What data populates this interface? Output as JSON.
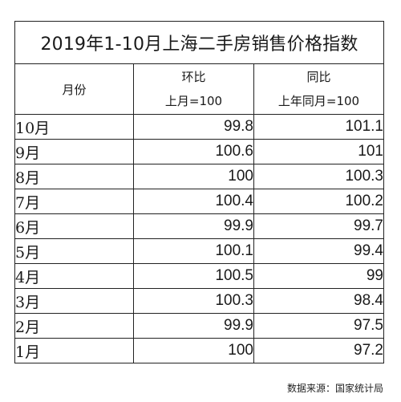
{
  "title": "2019年1-10月上海二手房销售价格指数",
  "header": {
    "month": "月份",
    "mom_label": "环比",
    "mom_base": "上月=100",
    "yoy_label": "同比",
    "yoy_base": "上年同月=100"
  },
  "rows": [
    {
      "month": "10月",
      "mom": "99.8",
      "yoy": "101.1"
    },
    {
      "month": "9月",
      "mom": "100.6",
      "yoy": "101"
    },
    {
      "month": "8月",
      "mom": "100",
      "yoy": "100.3"
    },
    {
      "month": "7月",
      "mom": "100.4",
      "yoy": "100.2"
    },
    {
      "month": "6月",
      "mom": "99.9",
      "yoy": "99.7"
    },
    {
      "month": "5月",
      "mom": "100.1",
      "yoy": "99.4"
    },
    {
      "month": "4月",
      "mom": "100.5",
      "yoy": "99"
    },
    {
      "month": "3月",
      "mom": "100.3",
      "yoy": "98.4"
    },
    {
      "month": "2月",
      "mom": "99.9",
      "yoy": "97.5"
    },
    {
      "month": "1月",
      "mom": "100",
      "yoy": "97.2"
    }
  ],
  "source": "数据来源：国家统计局"
}
